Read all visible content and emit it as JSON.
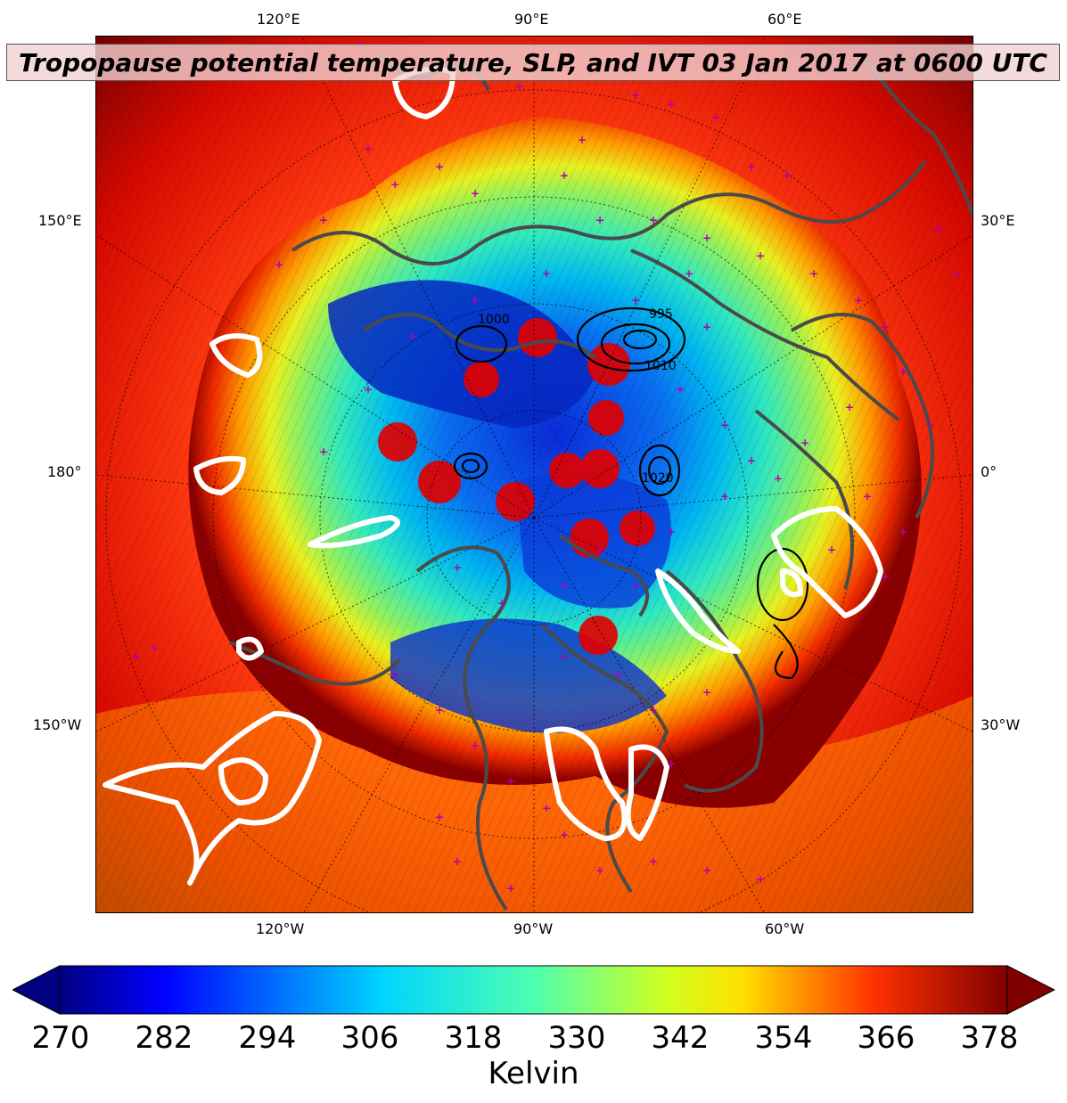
{
  "title": "Tropopause potential temperature, SLP, and IVT 03 Jan 2017 at 0600 UTC",
  "lon_labels": {
    "top": [
      "120°E",
      "90°E",
      "60°E"
    ],
    "bottom": [
      "120°W",
      "90°W",
      "60°W"
    ],
    "left": [
      "150°E",
      "180°",
      "150°W"
    ],
    "right": [
      "30°E",
      "0°",
      "30°W"
    ]
  },
  "slp_contour_labels": [
    "1000",
    "995",
    "1010",
    "1020"
  ],
  "colorbar": {
    "label": "Kelvin",
    "ticks": [
      "270",
      "282",
      "294",
      "306",
      "318",
      "330",
      "342",
      "354",
      "366",
      "378"
    ],
    "min": 270,
    "max": 381,
    "colormap": "jet"
  },
  "colors": {
    "ivt_contour": "#ffffff",
    "coastline": "#4a4a4a",
    "station_marker": "#b000b0",
    "cold_lobe": "#e00000"
  }
}
